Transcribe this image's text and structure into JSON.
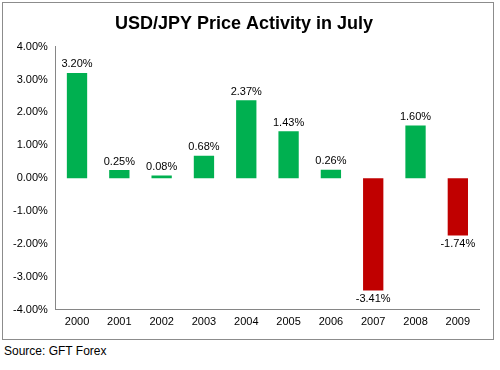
{
  "chart_data": {
    "type": "bar",
    "title": "USD/JPY Price Activity in July",
    "categories": [
      "2000",
      "2001",
      "2002",
      "2003",
      "2004",
      "2005",
      "2006",
      "2007",
      "2008",
      "2009"
    ],
    "values": [
      3.2,
      0.25,
      0.08,
      0.68,
      2.37,
      1.43,
      0.26,
      -3.41,
      1.6,
      -1.74
    ],
    "value_labels": [
      "3.20%",
      "0.25%",
      "0.08%",
      "0.68%",
      "2.37%",
      "1.43%",
      "0.26%",
      "-3.41%",
      "1.60%",
      "-1.74%"
    ],
    "colors": [
      "#00b050",
      "#00b050",
      "#00b050",
      "#00b050",
      "#00b050",
      "#00b050",
      "#00b050",
      "#c00000",
      "#00b050",
      "#c00000"
    ],
    "ylim": [
      -4,
      4
    ],
    "yticks": [
      {
        "value": -4,
        "label": "-4.00%"
      },
      {
        "value": -3,
        "label": "-3.00%"
      },
      {
        "value": -2,
        "label": "-2.00%"
      },
      {
        "value": -1,
        "label": "-1.00%"
      },
      {
        "value": 0,
        "label": "0.00%"
      },
      {
        "value": 1,
        "label": "1.00%"
      },
      {
        "value": 2,
        "label": "2.00%"
      },
      {
        "value": 3,
        "label": "3.00%"
      },
      {
        "value": 4,
        "label": "4.00%"
      }
    ],
    "grid": false,
    "data_labels": true,
    "annotations": [
      "Source: GFT Forex"
    ]
  }
}
